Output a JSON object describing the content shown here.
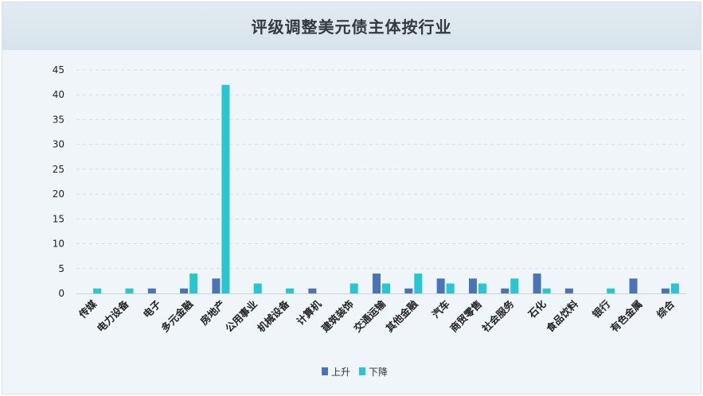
{
  "chart_data": {
    "type": "bar",
    "title": "评级调整美元债主体按行业",
    "xlabel": "",
    "ylabel": "",
    "ylim": [
      0,
      45
    ],
    "yticks": [
      0,
      5,
      10,
      15,
      20,
      25,
      30,
      35,
      40,
      45
    ],
    "grid": true,
    "legend_position": "bottom-center",
    "categories": [
      "传媒",
      "电力设备",
      "电子",
      "多元金融",
      "房地产",
      "公用事业",
      "机械设备",
      "计算机",
      "建筑装饰",
      "交通运输",
      "其他金融",
      "汽车",
      "商贸零售",
      "社会服务",
      "石化",
      "食品饮料",
      "银行",
      "有色金属",
      "综合"
    ],
    "series": [
      {
        "name": "上升",
        "color": "#4a74b5",
        "values": [
          0,
          0,
          1,
          1,
          3,
          0,
          0,
          1,
          0,
          4,
          1,
          3,
          3,
          1,
          4,
          1,
          0,
          3,
          1
        ]
      },
      {
        "name": "下降",
        "color": "#29c5d3",
        "values": [
          1,
          1,
          0,
          4,
          42,
          2,
          1,
          0,
          2,
          2,
          4,
          2,
          2,
          3,
          1,
          0,
          1,
          0,
          2
        ]
      }
    ]
  }
}
